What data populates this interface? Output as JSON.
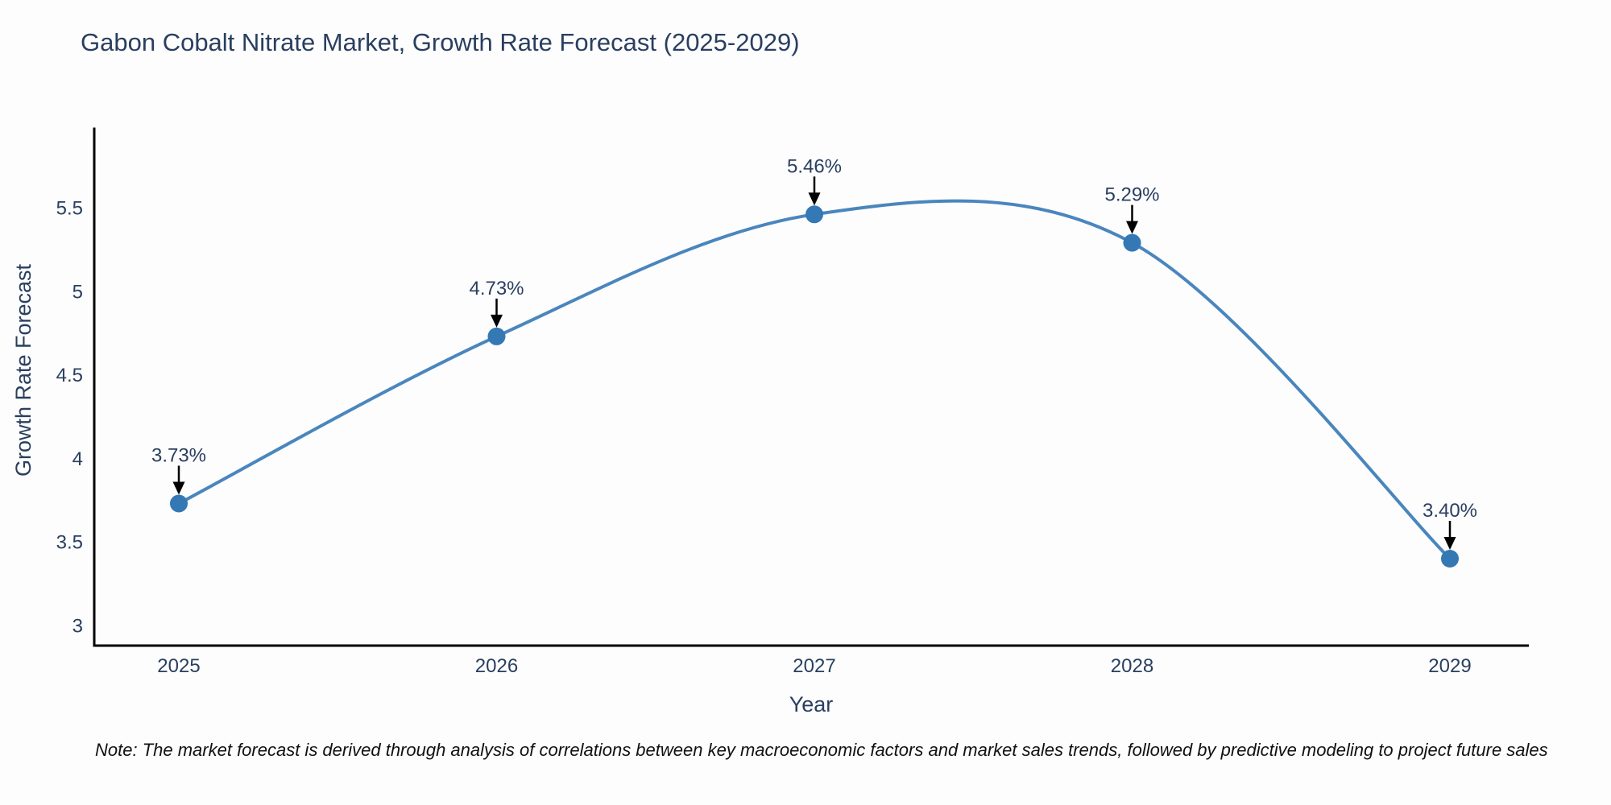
{
  "chart_data": {
    "type": "line",
    "title": "Gabon Cobalt Nitrate Market, Growth Rate Forecast (2025-2029)",
    "xlabel": "Year",
    "ylabel": "Growth Rate Forecast",
    "x": [
      2025,
      2026,
      2027,
      2028,
      2029
    ],
    "series": [
      {
        "name": "Growth Rate Forecast",
        "values": [
          3.73,
          4.73,
          5.46,
          5.29,
          3.4
        ]
      }
    ],
    "point_labels": [
      "3.73%",
      "4.73%",
      "5.46%",
      "5.29%",
      "3.40%"
    ],
    "y_ticks": [
      3,
      3.5,
      4,
      4.5,
      5,
      5.5
    ],
    "ylim": [
      2.9,
      6.0
    ],
    "grid": false,
    "legend": "none",
    "curve": "spline",
    "line_color": "#4a86bd",
    "marker_color": "#3478b4",
    "annotation_arrow_color": "#000000",
    "axis_line_color": "#000000",
    "text_color": "#2a3f5f"
  },
  "note": {
    "text": "Note: The market forecast is derived through analysis of correlations between key macroeconomic factors and market sales trends, followed by predictive modeling to project future sales"
  }
}
